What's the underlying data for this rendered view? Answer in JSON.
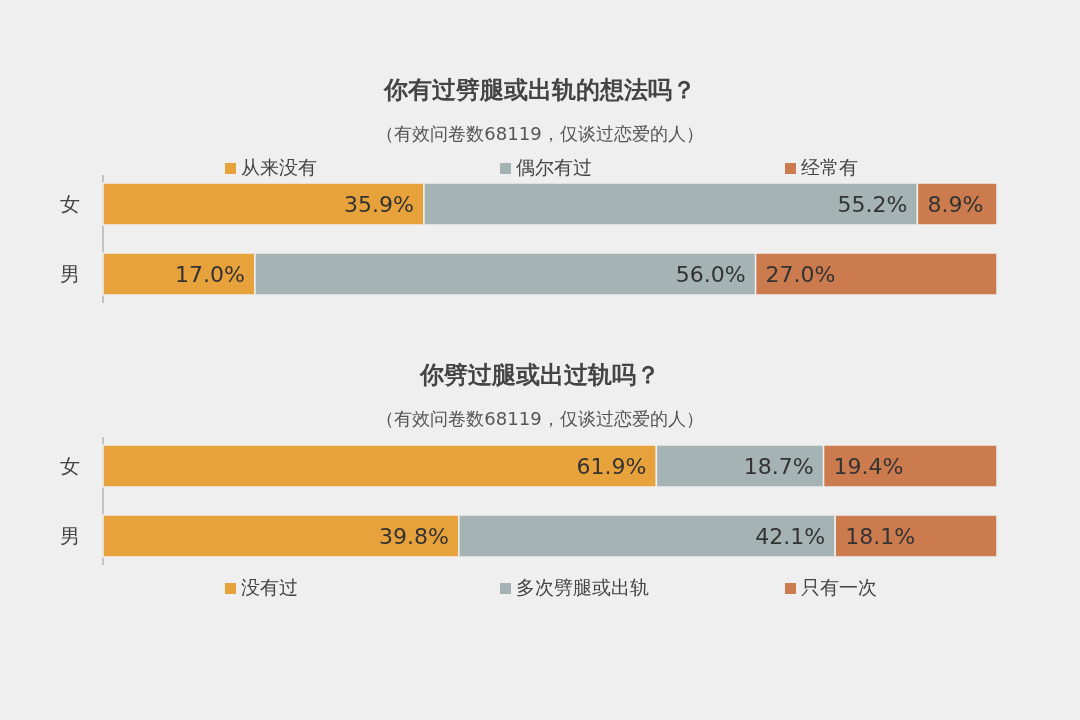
{
  "chart_data": [
    {
      "type": "bar",
      "orientation": "horizontal",
      "stacked": true,
      "title": "你有过劈腿或出轨的想法吗？",
      "subtitle": "（有效问卷数68119，仅谈过恋爱的人）",
      "categories": [
        "女",
        "男"
      ],
      "tick_labels": "y",
      "legend": "top",
      "series": [
        {
          "name": "从来没有",
          "color": "#e8a23c",
          "values": [
            35.9,
            17.0
          ],
          "value_labels": [
            "35.9%",
            "17.0%"
          ]
        },
        {
          "name": "偶尔有过",
          "color": "#a5b3b4",
          "values": [
            55.2,
            56.0
          ],
          "value_labels": [
            "55.2%",
            "56.0%"
          ]
        },
        {
          "name": "经常有",
          "color": "#cc7b4e",
          "values": [
            8.9,
            27.0
          ],
          "value_labels": [
            "8.9%",
            "27.0%"
          ]
        }
      ]
    },
    {
      "type": "bar",
      "orientation": "horizontal",
      "stacked": true,
      "title": "你劈过腿或出过轨吗？",
      "subtitle": "（有效问卷数68119，仅谈过恋爱的人）",
      "categories": [
        "女",
        "男"
      ],
      "tick_labels": "y",
      "legend": "bottom",
      "series": [
        {
          "name": "没有过",
          "color": "#e8a23c",
          "values": [
            61.9,
            39.8
          ],
          "value_labels": [
            "61.9%",
            "39.8%"
          ]
        },
        {
          "name": "多次劈腿或出轨",
          "color": "#a5b3b4",
          "values": [
            18.7,
            42.1
          ],
          "value_labels": [
            "18.7%",
            "42.1%"
          ]
        },
        {
          "name": "只有一次",
          "color": "#cc7b4e",
          "values": [
            19.4,
            18.1
          ],
          "value_labels": [
            "19.4%",
            "18.1%"
          ]
        }
      ]
    }
  ]
}
